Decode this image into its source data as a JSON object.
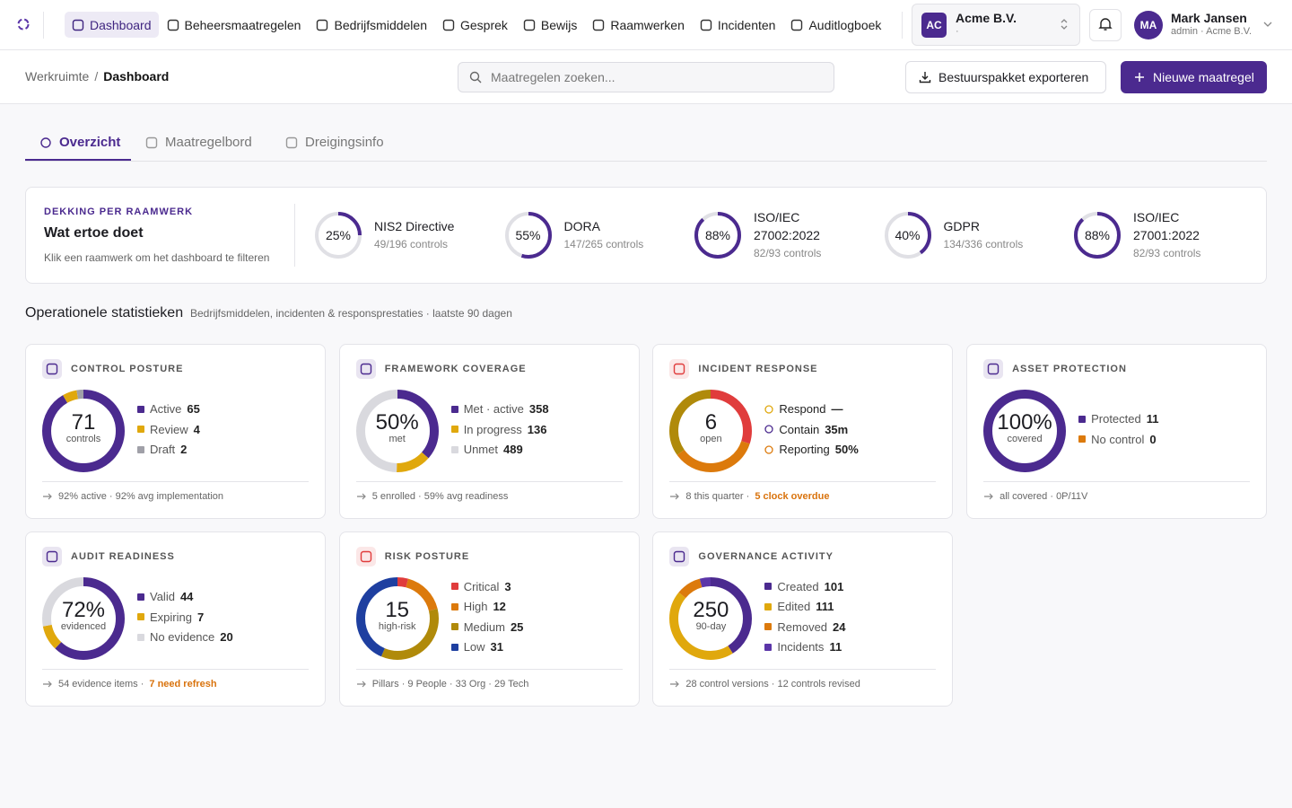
{
  "nav": {
    "items": [
      "Dashboard",
      "Beheersmaatregelen",
      "Bedrijfsmiddelen",
      "Gesprek",
      "Bewijs",
      "Raamwerken",
      "Incidenten",
      "Auditlogboek"
    ],
    "active": 0
  },
  "org": {
    "initials": "AC",
    "name": "Acme B.V.",
    "sub": "·"
  },
  "user": {
    "initials": "MA",
    "name": "Mark Jansen",
    "role": "admin · Acme B.V."
  },
  "breadcrumb": {
    "items": [
      "Werkruimte",
      "Dashboard"
    ],
    "separator": "/"
  },
  "search": {
    "placeholder": "Maatregelen zoeken..."
  },
  "actions": {
    "export": "Bestuurspakket exporteren",
    "new": "Nieuwe maatregel"
  },
  "tabs": {
    "items": [
      "Overzicht",
      "Maatregelbord",
      "Dreigingsinfo"
    ],
    "active": 0
  },
  "coverage": {
    "eyebrow": "DEKKING PER RAAMWERK",
    "title": "Wat ertoe doet",
    "hint": "Klik een raamwerk om het dashboard te filteren",
    "frameworks": [
      {
        "name": "NIS2 Directive",
        "value": 25,
        "value_label": "25%",
        "detail": "49/196 controls"
      },
      {
        "name": "DORA",
        "value": 55,
        "value_label": "55%",
        "detail": "147/265 controls"
      },
      {
        "name": "ISO/IEC 27002:2022",
        "value": 88,
        "value_label": "88%",
        "detail": "82/93 controls"
      },
      {
        "name": "GDPR",
        "value": 40,
        "value_label": "40%",
        "detail": "134/336 controls"
      },
      {
        "name": "ISO/IEC 27001:2022",
        "value": 88,
        "value_label": "88%",
        "detail": "82/93 controls"
      }
    ]
  },
  "stats": {
    "title": "Operationele statistieken",
    "subtitle": "Bedrijfsmiddelen, incidenten & responsprestaties · laatste 90 dagen",
    "cards": [
      {
        "title": "CONTROL POSTURE",
        "icon_color": "#4b2a8f",
        "center": "71",
        "caption": "controls",
        "legend": [
          {
            "name": "Active",
            "value": 65,
            "color": "#4b2a8f"
          },
          {
            "name": "Review",
            "value": 4,
            "color": "#e0a80d"
          },
          {
            "name": "Draft",
            "value": 2,
            "color": "#a0a0a8"
          }
        ],
        "footer": {
          "text": "92% active · 92% avg implementation"
        }
      },
      {
        "title": "FRAMEWORK COVERAGE",
        "icon_color": "#4b2a8f",
        "center": "50%",
        "caption": "met",
        "legend": [
          {
            "name": "Met · active",
            "value": 358,
            "color": "#4b2a8f"
          },
          {
            "name": "In progress",
            "value": 136,
            "color": "#e0a80d"
          },
          {
            "name": "Unmet",
            "value": 489,
            "color": "#d9d9de"
          }
        ],
        "footer": {
          "text": "5 enrolled · 59% avg readiness"
        }
      },
      {
        "title": "INCIDENT RESPONSE",
        "icon_color": "#e03c3c",
        "center": "6",
        "caption": "open",
        "legend_marker": "icon",
        "ring_segments": [
          {
            "value": 30,
            "color": "#e03c3c"
          },
          {
            "value": 35,
            "color": "#dc7a0c"
          },
          {
            "value": 35,
            "color": "#b08a0a"
          }
        ],
        "legend": [
          {
            "name": "Respond",
            "value": "—",
            "color": "#e0a80d"
          },
          {
            "name": "Contain",
            "value": "35m",
            "color": "#4b2a8f"
          },
          {
            "name": "Reporting",
            "value": "50%",
            "color": "#dc7a0c"
          }
        ],
        "footer": {
          "text": "8 this quarter ·",
          "alert": "5 clock overdue"
        }
      },
      {
        "title": "ASSET PROTECTION",
        "icon_color": "#4b2a8f",
        "center": "100%",
        "caption": "covered",
        "legend": [
          {
            "name": "Protected",
            "value": 11,
            "color": "#4b2a8f"
          },
          {
            "name": "No control",
            "value": 0,
            "color": "#dc7a0c"
          }
        ],
        "footer": {
          "text": "all covered · 0P/11V"
        }
      },
      {
        "title": "AUDIT READINESS",
        "icon_color": "#4b2a8f",
        "center": "72%",
        "caption": "evidenced",
        "legend": [
          {
            "name": "Valid",
            "value": 44,
            "color": "#4b2a8f"
          },
          {
            "name": "Expiring",
            "value": 7,
            "color": "#e0a80d"
          },
          {
            "name": "No evidence",
            "value": 20,
            "color": "#d9d9de"
          }
        ],
        "footer": {
          "text": "54 evidence items ·",
          "alert": "7 need refresh"
        }
      },
      {
        "title": "RISK POSTURE",
        "icon_color": "#e03c3c",
        "center": "15",
        "caption": "high-risk",
        "legend": [
          {
            "name": "Critical",
            "value": 3,
            "color": "#e03c3c"
          },
          {
            "name": "High",
            "value": 12,
            "color": "#dc7a0c"
          },
          {
            "name": "Medium",
            "value": 25,
            "color": "#b08a0a"
          },
          {
            "name": "Low",
            "value": 31,
            "color": "#1e3fa0"
          }
        ],
        "footer": {
          "text": "Pillars · 9 People · 33 Org · 29 Tech"
        }
      },
      {
        "title": "GOVERNANCE ACTIVITY",
        "icon_color": "#4b2a8f",
        "center": "250",
        "caption": "90-day",
        "legend": [
          {
            "name": "Created",
            "value": 101,
            "color": "#4b2a8f"
          },
          {
            "name": "Edited",
            "value": 111,
            "color": "#e0a80d"
          },
          {
            "name": "Removed",
            "value": 24,
            "color": "#dc7a0c"
          },
          {
            "name": "Incidents",
            "value": 11,
            "color": "#5b35a8"
          }
        ],
        "footer": {
          "text": "28 control versions · 12 controls revised"
        }
      }
    ]
  }
}
